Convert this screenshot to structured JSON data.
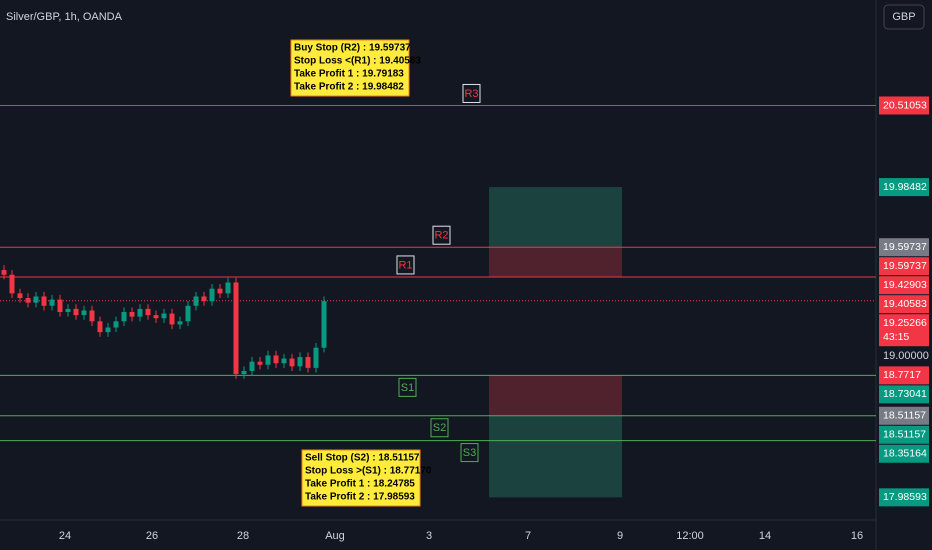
{
  "chart_data": {
    "type": "candlestick",
    "title": "Silver/GBP, 1h, OANDA",
    "currency": "GBP",
    "ylim": [
      17.84,
      21.19
    ],
    "xticks": [
      "24",
      "26",
      "28",
      "Aug",
      "3",
      "7",
      "9",
      "12:00",
      "14",
      "16"
    ],
    "up_color": "#089981",
    "down_color": "#f23645",
    "open": [
      19.45,
      19.42,
      19.3,
      19.27,
      19.24,
      19.28,
      19.22,
      19.26,
      19.18,
      19.2,
      19.16,
      19.19,
      19.12,
      19.05,
      19.08,
      19.12,
      19.18,
      19.15,
      19.2,
      19.16,
      19.14,
      19.17,
      19.1,
      19.12,
      19.22,
      19.28,
      19.25,
      19.33,
      19.3,
      19.37,
      18.78,
      18.8,
      18.86,
      18.84,
      18.9,
      18.85,
      18.88,
      18.83,
      18.89,
      18.82,
      18.95
    ],
    "high": [
      19.48,
      19.45,
      19.33,
      19.3,
      19.31,
      19.31,
      19.29,
      19.29,
      19.23,
      19.23,
      19.22,
      19.22,
      19.15,
      19.11,
      19.15,
      19.21,
      19.21,
      19.23,
      19.23,
      19.19,
      19.2,
      19.2,
      19.15,
      19.25,
      19.31,
      19.31,
      19.36,
      19.36,
      19.4,
      19.4,
      18.83,
      18.89,
      18.89,
      18.93,
      18.93,
      18.91,
      18.91,
      18.92,
      18.92,
      18.98,
      19.28
    ],
    "low": [
      19.39,
      19.27,
      19.24,
      19.21,
      19.21,
      19.19,
      19.19,
      19.15,
      19.15,
      19.13,
      19.13,
      19.09,
      19.02,
      19.02,
      19.05,
      19.09,
      19.12,
      19.12,
      19.13,
      19.11,
      19.11,
      19.07,
      19.07,
      19.09,
      19.19,
      19.22,
      19.22,
      19.27,
      19.27,
      18.75,
      18.75,
      18.77,
      18.81,
      18.81,
      18.82,
      18.82,
      18.8,
      18.8,
      18.79,
      18.79,
      18.92
    ],
    "close": [
      19.42,
      19.3,
      19.27,
      19.24,
      19.28,
      19.22,
      19.26,
      19.18,
      19.2,
      19.16,
      19.19,
      19.12,
      19.05,
      19.08,
      19.12,
      19.18,
      19.15,
      19.2,
      19.16,
      19.14,
      19.17,
      19.1,
      19.12,
      19.22,
      19.28,
      19.25,
      19.33,
      19.3,
      19.37,
      18.78,
      18.8,
      18.86,
      18.84,
      18.9,
      18.85,
      18.88,
      18.83,
      18.89,
      18.82,
      18.95,
      19.25
    ],
    "levels": [
      {
        "label": "R3",
        "value": 20.51053,
        "color": "#f23645"
      },
      {
        "label": "R2",
        "value": 19.59737,
        "color": "#f23645"
      },
      {
        "label": "R1",
        "value": 19.40583,
        "color": "#f23645"
      },
      {
        "label": "S1",
        "value": 18.7717,
        "color": "#4caf50"
      },
      {
        "label": "S2",
        "value": 18.51157,
        "color": "#4caf50"
      },
      {
        "label": "S3",
        "value": 18.35164,
        "color": "#4caf50"
      }
    ],
    "current_price": 19.25266,
    "countdown": "43:15",
    "zones": [
      {
        "top": 19.98482,
        "bottom": 19.59737,
        "color": "#1f4a45"
      },
      {
        "top": 19.59737,
        "bottom": 19.40583,
        "color": "#5c2530"
      },
      {
        "top": 18.7717,
        "bottom": 18.51157,
        "color": "#5c2530"
      },
      {
        "top": 18.51157,
        "bottom": 17.98593,
        "color": "#1f4a45"
      }
    ],
    "price_labels": [
      {
        "value": 20.51053,
        "color": "#f23645"
      },
      {
        "value": 19.98482,
        "color": "#089981"
      },
      {
        "value": 19.59737,
        "color": "#787b86"
      },
      {
        "value": 19.59737,
        "color": "#f23645"
      },
      {
        "value": 19.42903,
        "color": "#f23645"
      },
      {
        "value": 19.40583,
        "color": "#f23645"
      },
      {
        "value": 19.25266,
        "color": "#f23645"
      },
      {
        "value": {
          "value": 19,
          "label": "19.00000"
        },
        "color": null
      },
      {
        "value": 18.7717,
        "color": "#f23645"
      },
      {
        "value": 18.73041,
        "color": "#089981"
      },
      {
        "value": 18.51157,
        "color": "#787b86"
      },
      {
        "value": 18.51157,
        "color": "#089981"
      },
      {
        "value": 18.35164,
        "color": "#089981"
      },
      {
        "value": 17.98593,
        "color": "#089981"
      }
    ],
    "notes": [
      [
        "Buy Stop (R2) : 19.59737",
        "Stop Loss <(R1) : 19.40583",
        "Take Profit 1 : 19.79183",
        "Take Profit 2 : 19.98482"
      ],
      [
        "Sell Stop (S2) : 18.51157",
        "Stop Loss >(S1) : 18.77170",
        "Take Profit 1 : 18.24785",
        "Take Profit 2 : 17.98593"
      ]
    ]
  }
}
